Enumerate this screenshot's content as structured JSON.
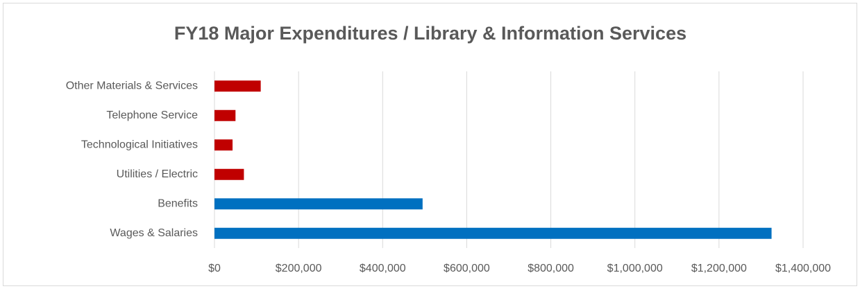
{
  "chart_data": {
    "type": "barh",
    "title": "FY18 Major Expenditures / Library & Information Services",
    "categories": [
      "Wages & Salaries",
      "Benefits",
      "Utilities / Electric",
      "Technological Initiatives",
      "Telephone Service",
      "Other Materials & Services"
    ],
    "values": [
      1325000,
      495000,
      70000,
      43000,
      50000,
      110000
    ],
    "colors": [
      "#0070c0",
      "#0070c0",
      "#c00000",
      "#c00000",
      "#c00000",
      "#c00000"
    ],
    "xlim": [
      0,
      1400000
    ],
    "xticks": [
      {
        "value": 0,
        "label": "$0"
      },
      {
        "value": 200000,
        "label": "$200,000"
      },
      {
        "value": 400000,
        "label": "$400,000"
      },
      {
        "value": 600000,
        "label": "$600,000"
      },
      {
        "value": 800000,
        "label": "$800,000"
      },
      {
        "value": 1000000,
        "label": "$1,000,000"
      },
      {
        "value": 1200000,
        "label": "$1,200,000"
      },
      {
        "value": 1400000,
        "label": "$1,400,000"
      }
    ],
    "grid": true
  }
}
